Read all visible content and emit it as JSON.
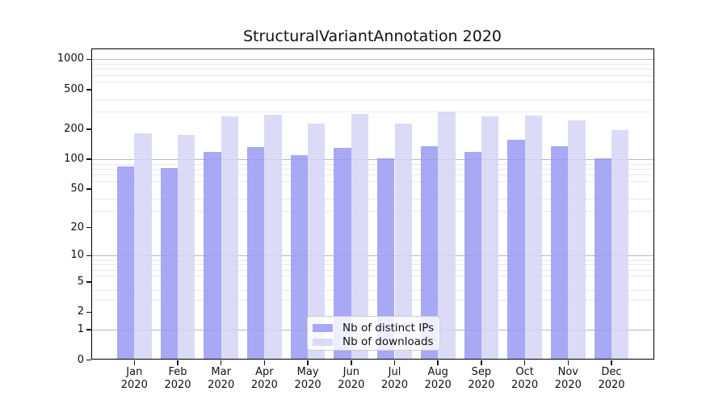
{
  "chart_data": {
    "type": "bar",
    "title": "StructuralVariantAnnotation 2020",
    "categories": [
      "Jan",
      "Feb",
      "Mar",
      "Apr",
      "May",
      "Jun",
      "Jul",
      "Aug",
      "Sep",
      "Oct",
      "Nov",
      "Dec"
    ],
    "x_sub_label": "2020",
    "series": [
      {
        "name": "Nb of distinct IPs",
        "color": "#9999f3",
        "values": [
          84,
          81,
          118,
          133,
          110,
          130,
          101,
          135,
          119,
          158,
          136,
          102
        ]
      },
      {
        "name": "Nb of downloads",
        "color": "#d5d5f7",
        "values": [
          183,
          176,
          270,
          277,
          227,
          283,
          227,
          303,
          270,
          274,
          245,
          195
        ]
      }
    ],
    "yscale": "log10(1+y)",
    "yticks": [
      0,
      1,
      2,
      5,
      10,
      20,
      50,
      100,
      200,
      500,
      1000
    ],
    "ylim": [
      0,
      1285
    ],
    "grid": true,
    "grid_major_at": [
      1,
      10,
      100,
      1000
    ],
    "grid_minor_at": [
      3,
      4,
      6,
      7,
      8,
      9,
      30,
      40,
      60,
      70,
      80,
      90,
      300,
      400,
      600,
      700,
      800,
      900
    ],
    "legend_position": "lower center",
    "colors": {
      "grid_major": "#b9b9b9",
      "grid_minor": "#e9e9e9",
      "axis": "#000000",
      "background": "#ffffff"
    }
  }
}
